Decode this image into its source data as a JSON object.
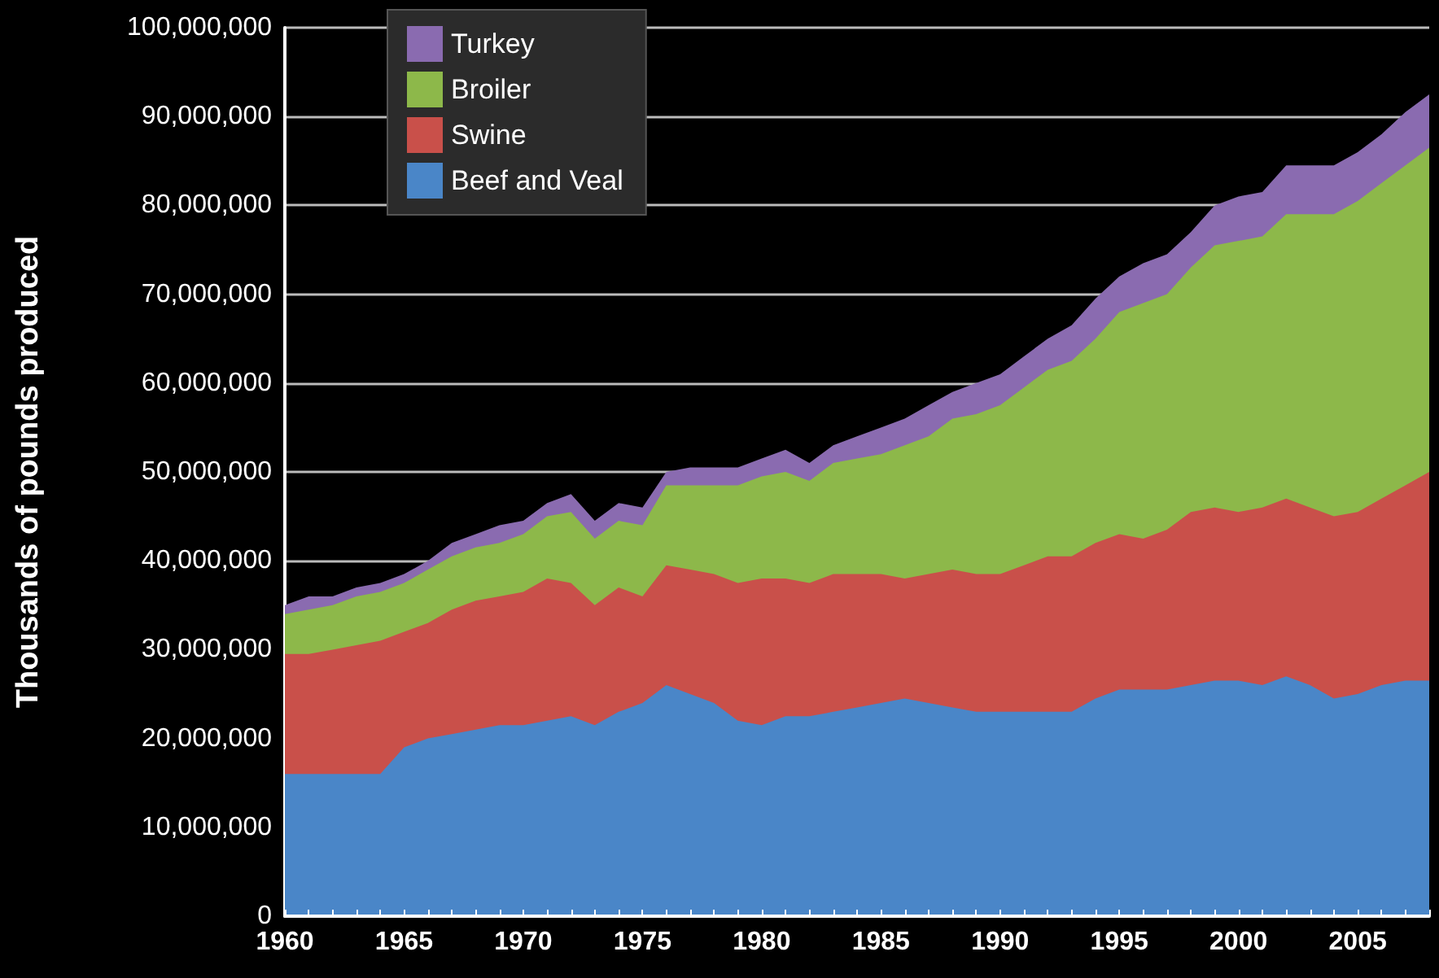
{
  "chart_data": {
    "type": "area",
    "ylabel": "Thousands of pounds produced",
    "stacked": true,
    "x": [
      1960,
      1961,
      1962,
      1963,
      1964,
      1965,
      1966,
      1967,
      1968,
      1969,
      1970,
      1971,
      1972,
      1973,
      1974,
      1975,
      1976,
      1977,
      1978,
      1979,
      1980,
      1981,
      1982,
      1983,
      1984,
      1985,
      1986,
      1987,
      1988,
      1989,
      1990,
      1991,
      1992,
      1993,
      1994,
      1995,
      1996,
      1997,
      1998,
      1999,
      2000,
      2001,
      2002,
      2003,
      2004,
      2005,
      2006,
      2007,
      2008
    ],
    "series": [
      {
        "name": "Beef and Veal",
        "color": "#4a86c8",
        "values": [
          16000000,
          16000000,
          16000000,
          16000000,
          16000000,
          19000000,
          20000000,
          20500000,
          21000000,
          21500000,
          21500000,
          22000000,
          22500000,
          21500000,
          23000000,
          24000000,
          26000000,
          25000000,
          24000000,
          22000000,
          21500000,
          22500000,
          22500000,
          23000000,
          23500000,
          24000000,
          24500000,
          24000000,
          23500000,
          23000000,
          23000000,
          23000000,
          23000000,
          23000000,
          24500000,
          25500000,
          25500000,
          25500000,
          26000000,
          26500000,
          26500000,
          26000000,
          27000000,
          26000000,
          24500000,
          25000000,
          26000000,
          26500000,
          26500000
        ]
      },
      {
        "name": "Swine",
        "color": "#c9504a",
        "values": [
          13500000,
          13500000,
          14000000,
          14500000,
          15000000,
          13000000,
          13000000,
          14000000,
          14500000,
          14500000,
          15000000,
          16000000,
          15000000,
          13500000,
          14000000,
          12000000,
          13500000,
          14000000,
          14500000,
          15500000,
          16500000,
          15500000,
          15000000,
          15500000,
          15000000,
          14500000,
          13500000,
          14500000,
          15500000,
          15500000,
          15500000,
          16500000,
          17500000,
          17500000,
          17500000,
          17500000,
          17000000,
          18000000,
          19500000,
          19500000,
          19000000,
          20000000,
          20000000,
          20000000,
          20500000,
          20500000,
          21000000,
          22000000,
          23500000
        ]
      },
      {
        "name": "Broiler",
        "color": "#8db84a",
        "values": [
          4500000,
          5000000,
          5000000,
          5500000,
          5500000,
          5500000,
          6000000,
          6000000,
          6000000,
          6000000,
          6500000,
          7000000,
          8000000,
          7500000,
          7500000,
          8000000,
          9000000,
          9500000,
          10000000,
          11000000,
          11500000,
          12000000,
          11500000,
          12500000,
          13000000,
          13500000,
          15000000,
          15500000,
          17000000,
          18000000,
          19000000,
          20000000,
          21000000,
          22000000,
          23000000,
          25000000,
          26500000,
          26500000,
          27500000,
          29500000,
          30500000,
          30500000,
          32000000,
          33000000,
          34000000,
          35000000,
          35500000,
          36000000,
          36500000
        ]
      },
      {
        "name": "Turkey",
        "color": "#8a6bb0",
        "values": [
          1000000,
          1500000,
          1000000,
          1000000,
          1000000,
          1000000,
          1000000,
          1500000,
          1500000,
          2000000,
          1500000,
          1500000,
          2000000,
          2000000,
          2000000,
          2000000,
          1500000,
          2000000,
          2000000,
          2000000,
          2000000,
          2500000,
          2000000,
          2000000,
          2500000,
          3000000,
          3000000,
          3500000,
          3000000,
          3500000,
          3500000,
          3500000,
          3500000,
          4000000,
          4500000,
          4000000,
          4500000,
          4500000,
          4000000,
          4500000,
          5000000,
          5000000,
          5500000,
          5500000,
          5500000,
          5500000,
          5500000,
          6000000,
          6000000
        ]
      }
    ],
    "xlim": [
      1960,
      2008
    ],
    "xticks": [
      1960,
      {
        "value": 1961,
        "label": null
      },
      {
        "value": 1962,
        "label": null
      },
      {
        "value": 1963,
        "label": null
      },
      {
        "value": 1964,
        "label": null
      },
      1965,
      {
        "value": 1966,
        "label": null
      },
      {
        "value": 1967,
        "label": null
      },
      {
        "value": 1968,
        "label": null
      },
      {
        "value": 1969,
        "label": null
      },
      1970,
      {
        "value": 1971,
        "label": null
      },
      {
        "value": 1972,
        "label": null
      },
      {
        "value": 1973,
        "label": null
      },
      {
        "value": 1974,
        "label": null
      },
      1975,
      {
        "value": 1976,
        "label": null
      },
      {
        "value": 1977,
        "label": null
      },
      {
        "value": 1978,
        "label": null
      },
      {
        "value": 1979,
        "label": null
      },
      1980,
      {
        "value": 1981,
        "label": null
      },
      {
        "value": 1982,
        "label": null
      },
      {
        "value": 1983,
        "label": null
      },
      {
        "value": 1984,
        "label": null
      },
      1985,
      {
        "value": 1986,
        "label": null
      },
      {
        "value": 1987,
        "label": null
      },
      {
        "value": 1988,
        "label": null
      },
      {
        "value": 1989,
        "label": null
      },
      1990,
      {
        "value": 1991,
        "label": null
      },
      {
        "value": 1992,
        "label": null
      },
      {
        "value": 1993,
        "label": null
      },
      {
        "value": 1994,
        "label": null
      },
      1995,
      {
        "value": 1996,
        "label": null
      },
      {
        "value": 1997,
        "label": null
      },
      {
        "value": 1998,
        "label": null
      },
      {
        "value": 1999,
        "label": null
      },
      2000,
      {
        "value": 2001,
        "label": null
      },
      {
        "value": 2002,
        "label": null
      },
      {
        "value": 2003,
        "label": null
      },
      {
        "value": 2004,
        "label": null
      },
      2005,
      {
        "value": 2006,
        "label": null
      },
      {
        "value": 2007,
        "label": null
      },
      {
        "value": 2008,
        "label": null
      }
    ],
    "ylim": [
      0,
      100000000
    ],
    "yticks": [
      0,
      {
        "value": 10000000,
        "label": "10,000,000"
      },
      {
        "value": 20000000,
        "label": "20,000,000"
      },
      {
        "value": 30000000,
        "label": "30,000,000"
      },
      {
        "value": 40000000,
        "label": "40,000,000"
      },
      {
        "value": 50000000,
        "label": "50,000,000"
      },
      {
        "value": 60000000,
        "label": "60,000,000"
      },
      {
        "value": 70000000,
        "label": "70,000,000"
      },
      {
        "value": 80000000,
        "label": "80,000,000"
      },
      {
        "value": 90000000,
        "label": "90,000,000"
      },
      {
        "value": 100000000,
        "label": "100,000,000"
      }
    ],
    "grid": "y",
    "legend": "top left",
    "marker": "none"
  }
}
